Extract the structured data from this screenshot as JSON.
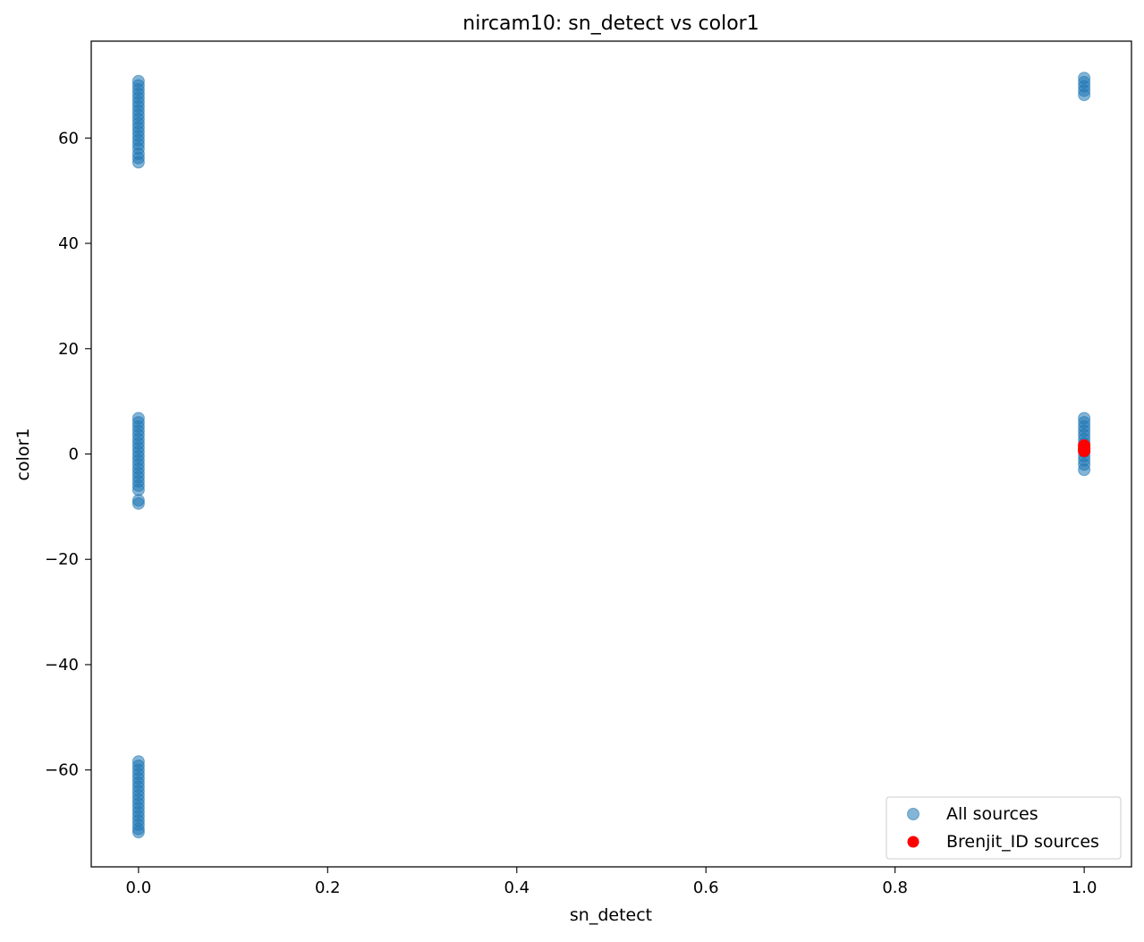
{
  "colors": {
    "all_sources": "#1f77b4",
    "brenjit_sources": "#ff0000",
    "axes": "#000000",
    "legend_border": "#cccccc",
    "background": "#ffffff"
  },
  "chart_data": {
    "type": "scatter",
    "title": "nircam10: sn_detect vs color1",
    "xlabel": "sn_detect",
    "ylabel": "color1",
    "xlim": [
      -0.05,
      1.05
    ],
    "ylim": [
      -78.4,
      78.4
    ],
    "grid": false,
    "legend_position": "lower right",
    "x_ticks": [
      0.0,
      0.2,
      0.4,
      0.6,
      0.8,
      1.0
    ],
    "x_tick_labels": [
      "0.0",
      "0.2",
      "0.4",
      "0.6",
      "0.8",
      "1.0"
    ],
    "y_ticks": [
      -60,
      -40,
      -20,
      0,
      20,
      40,
      60
    ],
    "y_tick_labels": [
      "−60",
      "−40",
      "−20",
      "0",
      "20",
      "40",
      "60"
    ],
    "series": [
      {
        "name": "All sources",
        "color": "#1f77b4",
        "alpha": 0.55,
        "points": [
          {
            "x": 0.0,
            "y": 70.8
          },
          {
            "x": 0.0,
            "y": 70.0
          },
          {
            "x": 0.0,
            "y": 69.2
          },
          {
            "x": 0.0,
            "y": 68.4
          },
          {
            "x": 0.0,
            "y": 67.6
          },
          {
            "x": 0.0,
            "y": 66.8
          },
          {
            "x": 0.0,
            "y": 66.0
          },
          {
            "x": 0.0,
            "y": 65.2
          },
          {
            "x": 0.0,
            "y": 64.4
          },
          {
            "x": 0.0,
            "y": 63.6
          },
          {
            "x": 0.0,
            "y": 62.8
          },
          {
            "x": 0.0,
            "y": 62.0
          },
          {
            "x": 0.0,
            "y": 61.2
          },
          {
            "x": 0.0,
            "y": 60.4
          },
          {
            "x": 0.0,
            "y": 59.6
          },
          {
            "x": 0.0,
            "y": 58.8
          },
          {
            "x": 0.0,
            "y": 58.0
          },
          {
            "x": 0.0,
            "y": 57.0
          },
          {
            "x": 0.0,
            "y": 56.2
          },
          {
            "x": 0.0,
            "y": 55.4
          },
          {
            "x": 0.0,
            "y": 6.8
          },
          {
            "x": 0.0,
            "y": 6.0
          },
          {
            "x": 0.0,
            "y": 5.2
          },
          {
            "x": 0.0,
            "y": 4.4
          },
          {
            "x": 0.0,
            "y": 3.6
          },
          {
            "x": 0.0,
            "y": 2.8
          },
          {
            "x": 0.0,
            "y": 2.0
          },
          {
            "x": 0.0,
            "y": 1.2
          },
          {
            "x": 0.0,
            "y": 0.4
          },
          {
            "x": 0.0,
            "y": -0.4
          },
          {
            "x": 0.0,
            "y": -1.2
          },
          {
            "x": 0.0,
            "y": -2.0
          },
          {
            "x": 0.0,
            "y": -2.8
          },
          {
            "x": 0.0,
            "y": -3.6
          },
          {
            "x": 0.0,
            "y": -4.4
          },
          {
            "x": 0.0,
            "y": -5.2
          },
          {
            "x": 0.0,
            "y": -6.0
          },
          {
            "x": 0.0,
            "y": -6.8
          },
          {
            "x": 0.0,
            "y": -8.8
          },
          {
            "x": 0.0,
            "y": -9.4
          },
          {
            "x": 0.0,
            "y": -58.4
          },
          {
            "x": 0.0,
            "y": -59.2
          },
          {
            "x": 0.0,
            "y": -60.0
          },
          {
            "x": 0.0,
            "y": -60.8
          },
          {
            "x": 0.0,
            "y": -61.6
          },
          {
            "x": 0.0,
            "y": -62.4
          },
          {
            "x": 0.0,
            "y": -63.2
          },
          {
            "x": 0.0,
            "y": -64.0
          },
          {
            "x": 0.0,
            "y": -64.8
          },
          {
            "x": 0.0,
            "y": -65.6
          },
          {
            "x": 0.0,
            "y": -66.4
          },
          {
            "x": 0.0,
            "y": -67.2
          },
          {
            "x": 0.0,
            "y": -68.0
          },
          {
            "x": 0.0,
            "y": -68.8
          },
          {
            "x": 0.0,
            "y": -69.6
          },
          {
            "x": 0.0,
            "y": -70.4
          },
          {
            "x": 0.0,
            "y": -71.2
          },
          {
            "x": 0.0,
            "y": -71.8
          },
          {
            "x": 1.0,
            "y": 71.4
          },
          {
            "x": 1.0,
            "y": 70.6
          },
          {
            "x": 1.0,
            "y": 69.8
          },
          {
            "x": 1.0,
            "y": 69.0
          },
          {
            "x": 1.0,
            "y": 68.2
          },
          {
            "x": 1.0,
            "y": 6.8
          },
          {
            "x": 1.0,
            "y": 6.0
          },
          {
            "x": 1.0,
            "y": 5.2
          },
          {
            "x": 1.0,
            "y": 4.4
          },
          {
            "x": 1.0,
            "y": 3.6
          },
          {
            "x": 1.0,
            "y": 2.8
          },
          {
            "x": 1.0,
            "y": 2.0
          },
          {
            "x": 1.0,
            "y": 1.2
          },
          {
            "x": 1.0,
            "y": 0.4
          },
          {
            "x": 1.0,
            "y": -0.4
          },
          {
            "x": 1.0,
            "y": -1.2
          },
          {
            "x": 1.0,
            "y": -2.0
          },
          {
            "x": 1.0,
            "y": -3.0
          }
        ]
      },
      {
        "name": "Brenjit_ID sources",
        "color": "#ff0000",
        "alpha": 1.0,
        "points": [
          {
            "x": 1.0,
            "y": 1.6
          },
          {
            "x": 1.0,
            "y": 1.0
          },
          {
            "x": 1.0,
            "y": 0.6
          }
        ]
      }
    ]
  }
}
